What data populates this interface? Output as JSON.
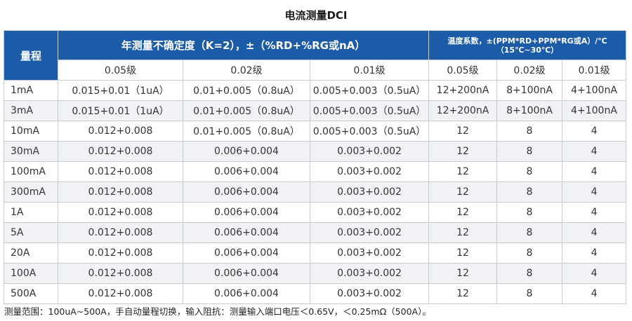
{
  "title": "电流测量DCI",
  "header": {
    "range_label": "量程",
    "uncertainty_label": "年测量不确定度（K=2），±（%RD+%RG或nA）",
    "temp_coeff_line1": "温度系数，±(PPM*RD+PPM*RG或A）/℃",
    "temp_coeff_line2": "（15℃~30℃）"
  },
  "grades": [
    "0.05级",
    "0.02级",
    "0.01级",
    "0.05级",
    "0.02级",
    "0.01级"
  ],
  "rows": [
    {
      "range": "1mA",
      "u005": "0.015+0.01（1uA）",
      "u002": "0.01+0.005（0.8uA）",
      "u001": "0.005+0.003（0.5uA）",
      "t005": "12+200nA",
      "t002": "8+100nA",
      "t001": "4+100nA"
    },
    {
      "range": "3mA",
      "u005": "0.015+0.01（1uA）",
      "u002": "0.01+0.005（0.8uA）",
      "u001": "0.005+0.003（0.5uA）",
      "t005": "12+200nA",
      "t002": "8+100nA",
      "t001": "4+100nA"
    },
    {
      "range": "10mA",
      "u005": "0.012+0.008",
      "u002": "0.01+0.005（0.8uA）",
      "u001": "0.005+0.003（0.5uA）",
      "t005": "12",
      "t002": "8",
      "t001": "4"
    },
    {
      "range": "30mA",
      "u005": "0.012+0.008",
      "u002": "0.006+0.004",
      "u001": "0.003+0.002",
      "t005": "12",
      "t002": "8",
      "t001": "4"
    },
    {
      "range": "100mA",
      "u005": "0.012+0.008",
      "u002": "0.006+0.004",
      "u001": "0.003+0.002",
      "t005": "12",
      "t002": "8",
      "t001": "4"
    },
    {
      "range": "300mA",
      "u005": "0.012+0.008",
      "u002": "0.006+0.004",
      "u001": "0.003+0.002",
      "t005": "12",
      "t002": "8",
      "t001": "4"
    },
    {
      "range": "1A",
      "u005": "0.012+0.008",
      "u002": "0.006+0.004",
      "u001": "0.003+0.002",
      "t005": "12",
      "t002": "8",
      "t001": "4"
    },
    {
      "range": "5A",
      "u005": "0.012+0.008",
      "u002": "0.006+0.004",
      "u001": "0.003+0.002",
      "t005": "12",
      "t002": "8",
      "t001": "4"
    },
    {
      "range": "20A",
      "u005": "0.012+0.008",
      "u002": "0.006+0.004",
      "u001": "0.003+0.002",
      "t005": "12",
      "t002": "8",
      "t001": "4"
    },
    {
      "range": "100A",
      "u005": "0.012+0.008",
      "u002": "0.006+0.004",
      "u001": "0.003+0.002",
      "t005": "12",
      "t002": "8",
      "t001": "4"
    },
    {
      "range": "500A",
      "u005": "0.012+0.008",
      "u002": "0.006+0.004",
      "u001": "0.003+0.002",
      "t005": "12",
      "t002": "8",
      "t001": "4"
    }
  ],
  "note": "测量范围：100uA~500A，手自动量程切换，输入阻抗：测量输入端口电压＜0.65V，＜0.25mΩ（500A）。",
  "colors": {
    "header_bg": "#1b5ba8",
    "header_text": "#ffffff",
    "row_alt_bg": "#f1f2f5",
    "border": "#c9ccd2"
  }
}
